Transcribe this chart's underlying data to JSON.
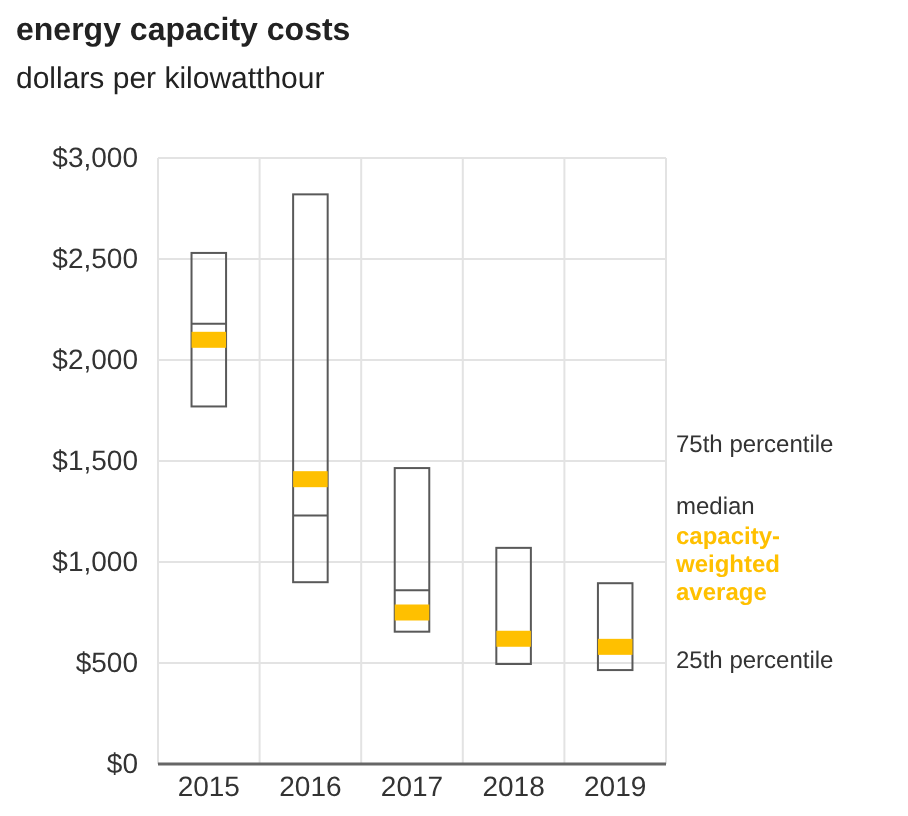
{
  "chart_data": {
    "type": "box",
    "title": "energy capacity costs",
    "subtitle": "dollars per kilowatthour",
    "categories": [
      "2015",
      "2016",
      "2017",
      "2018",
      "2019"
    ],
    "color": "#ffc000",
    "series": [
      {
        "color": "#595959",
        "boxes": [
          {
            "low": 1770,
            "q1": 1770,
            "median": 2180,
            "q3": 2530,
            "high": 2530,
            "mean": 2100
          },
          {
            "low": 900,
            "q1": 900,
            "median": 1230,
            "q3": 2820,
            "high": 2820,
            "mean": 1410
          },
          {
            "low": 655,
            "q1": 655,
            "median": 860,
            "q3": 1465,
            "high": 1465,
            "mean": 750
          },
          {
            "low": 495,
            "q1": 495,
            "median": null,
            "q3": 1070,
            "high": 1070,
            "mean": 620
          },
          {
            "low": 465,
            "q1": 465,
            "median": null,
            "q3": 895,
            "high": 895,
            "mean": 580
          }
        ]
      }
    ],
    "ylim": [
      0,
      3000
    ],
    "yticks": [
      {
        "value": 0,
        "label": "$0"
      },
      {
        "value": 500,
        "label": "$500"
      },
      {
        "value": 1000,
        "label": "$1,000"
      },
      {
        "value": 1500,
        "label": "$1,500"
      },
      {
        "value": 2000,
        "label": "$2,000"
      },
      {
        "value": 2500,
        "label": "$2,500"
      },
      {
        "value": 3000,
        "label": "$3,000"
      }
    ],
    "grid": true,
    "annotations": [
      "75th percentile",
      "median",
      "capacity-weighted average",
      "25th percentile"
    ]
  }
}
